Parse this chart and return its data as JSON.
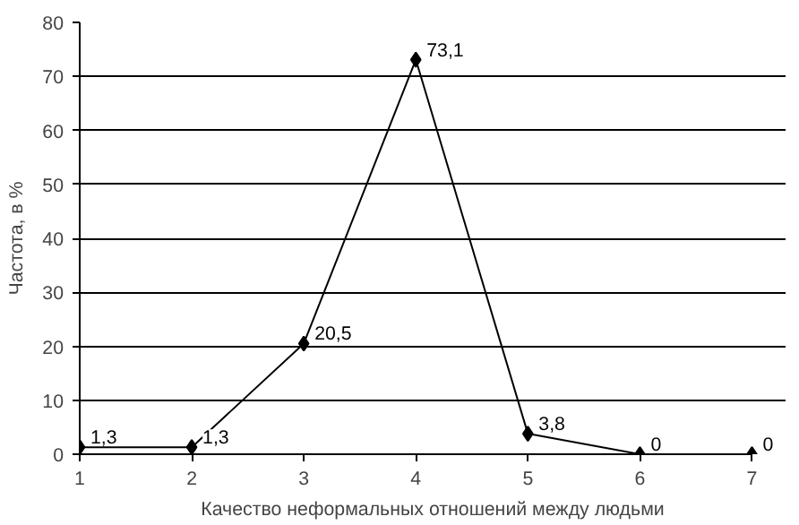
{
  "chart_data": {
    "type": "line",
    "xlabel": "Качество неформальных отношений между людьми",
    "ylabel": "Частота, в %",
    "x": [
      1,
      2,
      3,
      4,
      5,
      6,
      7
    ],
    "series": [
      {
        "color": "#000000",
        "values": [
          1.3,
          1.3,
          20.5,
          73.1,
          3.8,
          0,
          0
        ],
        "value_labels": [
          "1,3",
          "1,3",
          "20,5",
          "73,1",
          "3,8",
          "0",
          "0"
        ]
      }
    ],
    "xlim": [
      1,
      7
    ],
    "xticks": [
      1,
      2,
      3,
      4,
      5,
      6,
      7
    ],
    "ylim": [
      0,
      80
    ],
    "yticks": [
      0,
      10,
      20,
      30,
      40,
      50,
      60,
      70,
      80
    ],
    "grid": "y",
    "marker": "diamond",
    "line_style": "solid"
  }
}
